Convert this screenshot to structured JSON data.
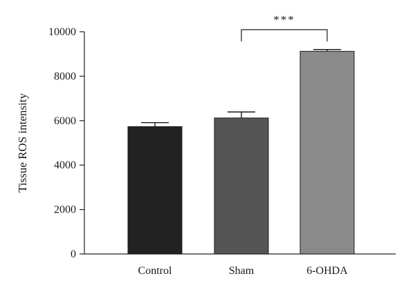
{
  "chart_data": {
    "type": "bar",
    "title": "",
    "xlabel": "",
    "ylabel": "Tissue ROS intensity",
    "ylim": [
      0,
      10000
    ],
    "yticks": [
      0,
      2000,
      4000,
      6000,
      8000,
      10000
    ],
    "categories": [
      "Control",
      "Sham",
      "6-OHDA"
    ],
    "values": [
      5730,
      6120,
      9120
    ],
    "error": [
      180,
      270,
      80
    ],
    "bar_colors": [
      "#222222",
      "#555555",
      "#8a8a8a"
    ],
    "grid": false,
    "annotations": [
      {
        "text": "***",
        "from": "Sham",
        "to": "6-OHDA"
      }
    ]
  }
}
